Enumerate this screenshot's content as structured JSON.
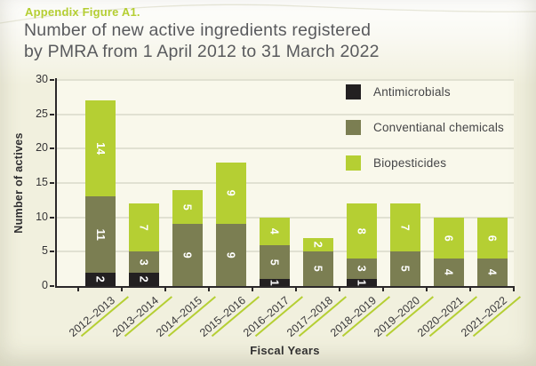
{
  "figure": {
    "label": "Appendix Figure A1.",
    "title_line1": "Number of new active ingredients registered",
    "title_line2": "by PMRA from 1 April 2012 to 31 March 2022"
  },
  "chart_data": {
    "type": "bar",
    "stacked": true,
    "title": "Number of new active ingredients registered by PMRA from 1 April 2012 to 31 March 2022",
    "xlabel": "Fiscal Years",
    "ylabel": "Number of actives",
    "ylim": [
      0,
      30
    ],
    "y_ticks": [
      0,
      5,
      10,
      15,
      20,
      25,
      30
    ],
    "grid": true,
    "legend_position": "top-right-inside",
    "bar_label_color": "#ffffff",
    "categories": [
      "2012–2013",
      "2013–2014",
      "2014–2015",
      "2015–2016",
      "2016–2017",
      "2017–2018",
      "2018–2019",
      "2019–2020",
      "2020–2021",
      "2021–2022"
    ],
    "series": [
      {
        "name": "Antimicrobials",
        "color": "#232021",
        "values": [
          2,
          2,
          0,
          0,
          1,
          0,
          1,
          0,
          0,
          0
        ]
      },
      {
        "name": "Conventianal chemicals",
        "color": "#7b7e52",
        "values": [
          11,
          3,
          9,
          9,
          5,
          5,
          3,
          5,
          4,
          4
        ]
      },
      {
        "name": "Biopesticides",
        "color": "#b5cf33",
        "values": [
          14,
          7,
          5,
          9,
          4,
          2,
          8,
          7,
          6,
          6
        ]
      }
    ]
  },
  "colors": {
    "accent_green": "#b5cf33",
    "olive_series": "#7b7e52",
    "black_series": "#232021",
    "background": "#f1f0de",
    "plot_background": "#f9f8eb",
    "gridline": "#e1e1d2",
    "axis": "#2b2829",
    "title_text": "#595a5d"
  }
}
